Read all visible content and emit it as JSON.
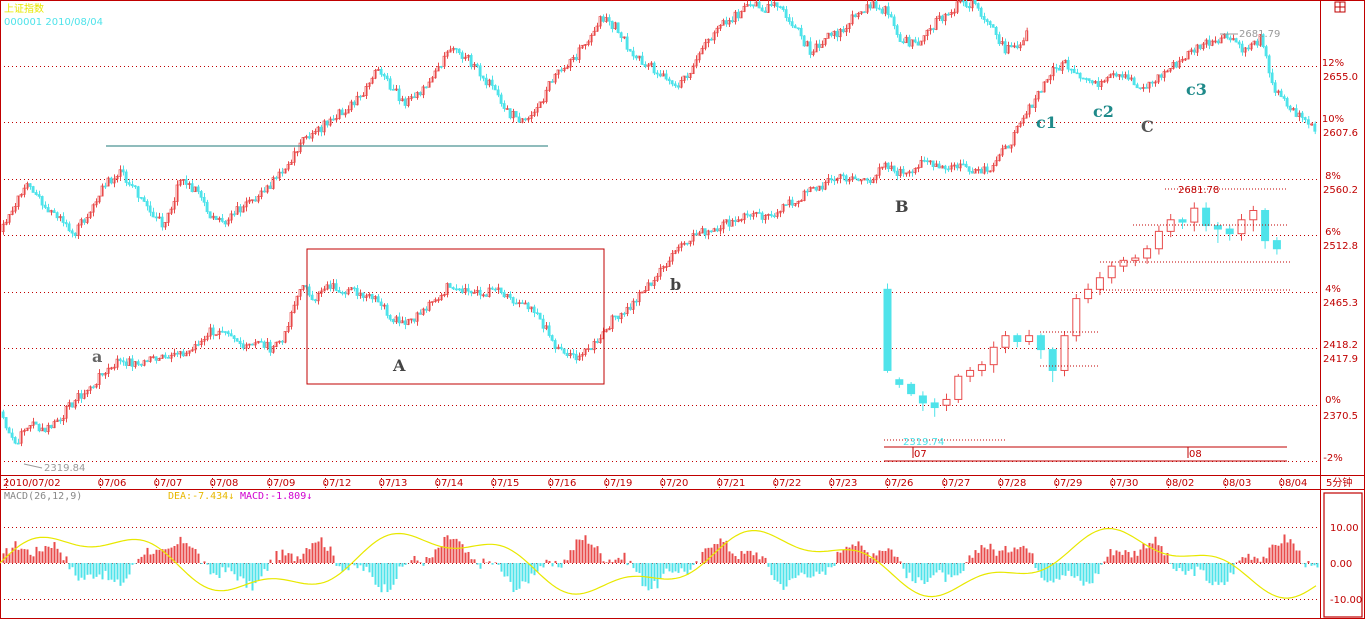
{
  "header": {
    "index_name": "上证指数",
    "code_date": "000001  2010/08/04",
    "toggle_icon": "window-toggle-icon"
  },
  "macd_header": {
    "params": "MACD(26,12,9)",
    "dea_text": "DEA:-7.434↓",
    "macd_text": "MACD:-1.809↓"
  },
  "timeframe_label": "5分钟",
  "colors": {
    "up": "#e84b4b",
    "down": "#4fe3ea",
    "frame": "#c00000",
    "dea": "#e8e800",
    "wave_label": "#1f8a8a"
  },
  "chart_data": [
    {
      "type": "candlestick",
      "panel": "main",
      "y_range": [
        2300,
        2700
      ],
      "y_tick_labels": [
        {
          "pct": "12%",
          "price": "2655.0"
        },
        {
          "pct": "10%",
          "price": "2607.6"
        },
        {
          "pct": "8%",
          "price": "2560.2"
        },
        {
          "pct": "6%",
          "price": "2512.8"
        },
        {
          "pct": "4%",
          "price": "2465.3"
        },
        {
          "pct": "",
          "price": "2418.2"
        },
        {
          "pct": "",
          "price": "2417.9"
        },
        {
          "pct": "0%",
          "price": "2370.5"
        },
        {
          "pct": "-2%",
          "price": ""
        }
      ],
      "x_tick_labels": [
        "2010/07/02",
        "07/06",
        "07/07",
        "07/08",
        "07/09",
        "07/12",
        "07/13",
        "07/14",
        "07/15",
        "07/16",
        "07/19",
        "07/20",
        "07/21",
        "07/22",
        "07/23",
        "07/26",
        "07/27",
        "07/28",
        "07/29",
        "07/30",
        "08/02",
        "08/03",
        "08/04"
      ],
      "annotations": {
        "low": "2319.84",
        "high": "2681.79",
        "waves": [
          "a",
          "A",
          "b",
          "B",
          "c1",
          "c2",
          "C",
          "c3"
        ]
      },
      "series_path": [
        [
          0,
          2350
        ],
        [
          15,
          2323
        ],
        [
          30,
          2340
        ],
        [
          45,
          2335
        ],
        [
          60,
          2345
        ],
        [
          75,
          2360
        ],
        [
          90,
          2370
        ],
        [
          105,
          2385
        ],
        [
          120,
          2395
        ],
        [
          135,
          2390
        ],
        [
          150,
          2395
        ],
        [
          165,
          2400
        ],
        [
          180,
          2398
        ],
        [
          195,
          2405
        ],
        [
          210,
          2420
        ],
        [
          225,
          2415
        ],
        [
          240,
          2408
        ],
        [
          255,
          2410
        ],
        [
          270,
          2405
        ],
        [
          285,
          2415
        ],
        [
          300,
          2458
        ],
        [
          315,
          2448
        ],
        [
          330,
          2458
        ],
        [
          345,
          2455
        ],
        [
          360,
          2452
        ],
        [
          375,
          2450
        ],
        [
          390,
          2432
        ],
        [
          405,
          2428
        ],
        [
          420,
          2434
        ],
        [
          435,
          2445
        ],
        [
          450,
          2460
        ],
        [
          465,
          2455
        ],
        [
          480,
          2450
        ],
        [
          495,
          2455
        ],
        [
          510,
          2445
        ],
        [
          525,
          2440
        ],
        [
          540,
          2430
        ],
        [
          555,
          2405
        ],
        [
          570,
          2397
        ],
        [
          585,
          2400
        ],
        [
          600,
          2415
        ],
        [
          615,
          2432
        ],
        [
          630,
          2440
        ],
        [
          645,
          2455
        ],
        [
          660,
          2470
        ],
        [
          675,
          2490
        ],
        [
          690,
          2500
        ],
        [
          705,
          2505
        ],
        [
          720,
          2510
        ],
        [
          735,
          2515
        ],
        [
          750,
          2520
        ],
        [
          765,
          2515
        ],
        [
          780,
          2525
        ],
        [
          795,
          2530
        ],
        [
          810,
          2540
        ],
        [
          825,
          2545
        ],
        [
          840,
          2553
        ],
        [
          855,
          2548
        ],
        [
          870,
          2550
        ],
        [
          885,
          2560
        ],
        [
          900,
          2555
        ],
        [
          915,
          2560
        ],
        [
          930,
          2565
        ],
        [
          945,
          2560
        ],
        [
          960,
          2562
        ],
        [
          975,
          2558
        ],
        [
          990,
          2560
        ],
        [
          1005,
          2575
        ],
        [
          1020,
          2595
        ],
        [
          1035,
          2620
        ],
        [
          1050,
          2640
        ],
        [
          1065,
          2650
        ],
        [
          1080,
          2640
        ],
        [
          1095,
          2630
        ],
        [
          1110,
          2642
        ],
        [
          1125,
          2640
        ],
        [
          1140,
          2625
        ],
        [
          1155,
          2635
        ],
        [
          1170,
          2645
        ],
        [
          1185,
          2655
        ],
        [
          1200,
          2665
        ],
        [
          1215,
          2670
        ],
        [
          1230,
          2673
        ],
        [
          1245,
          2660
        ],
        [
          1260,
          2670
        ],
        [
          1275,
          2625
        ],
        [
          1290,
          2610
        ],
        [
          1305,
          2600
        ],
        [
          1318,
          2592
        ]
      ],
      "upper_path": [
        [
          0,
          2505
        ],
        [
          15,
          2530
        ],
        [
          30,
          2545
        ],
        [
          45,
          2525
        ],
        [
          60,
          2515
        ],
        [
          75,
          2505
        ],
        [
          90,
          2520
        ],
        [
          105,
          2545
        ],
        [
          120,
          2555
        ],
        [
          135,
          2540
        ],
        [
          150,
          2520
        ],
        [
          165,
          2510
        ],
        [
          180,
          2550
        ],
        [
          195,
          2540
        ],
        [
          210,
          2520
        ],
        [
          225,
          2515
        ],
        [
          240,
          2525
        ],
        [
          255,
          2530
        ],
        [
          270,
          2545
        ],
        [
          285,
          2560
        ],
        [
          300,
          2580
        ],
        [
          315,
          2590
        ],
        [
          330,
          2600
        ],
        [
          345,
          2610
        ],
        [
          360,
          2620
        ],
        [
          375,
          2645
        ],
        [
          390,
          2630
        ],
        [
          405,
          2615
        ],
        [
          420,
          2625
        ],
        [
          435,
          2640
        ],
        [
          450,
          2660
        ],
        [
          465,
          2655
        ],
        [
          480,
          2640
        ],
        [
          495,
          2625
        ],
        [
          510,
          2605
        ],
        [
          525,
          2600
        ],
        [
          540,
          2615
        ],
        [
          555,
          2640
        ],
        [
          570,
          2650
        ],
        [
          585,
          2665
        ],
        [
          600,
          2690
        ],
        [
          615,
          2680
        ],
        [
          630,
          2660
        ],
        [
          645,
          2650
        ],
        [
          660,
          2640
        ],
        [
          675,
          2630
        ],
        [
          690,
          2640
        ],
        [
          705,
          2665
        ],
        [
          720,
          2680
        ],
        [
          735,
          2690
        ],
        [
          750,
          2700
        ],
        [
          765,
          2695
        ],
        [
          780,
          2700
        ],
        [
          795,
          2680
        ],
        [
          810,
          2660
        ],
        [
          825,
          2670
        ],
        [
          840,
          2675
        ],
        [
          855,
          2690
        ],
        [
          870,
          2700
        ],
        [
          885,
          2695
        ],
        [
          900,
          2670
        ],
        [
          915,
          2665
        ],
        [
          930,
          2680
        ],
        [
          945,
          2690
        ],
        [
          960,
          2700
        ],
        [
          975,
          2700
        ],
        [
          990,
          2680
        ],
        [
          1005,
          2660
        ],
        [
          1020,
          2665
        ],
        [
          1030,
          2680
        ]
      ]
    },
    {
      "type": "candlestick",
      "panel": "inset",
      "annotations": {
        "high": "2681.78",
        "low": "2319.74",
        "dates": [
          "07",
          "08"
        ]
      },
      "candles": [
        [
          2470,
          2400,
          2475,
          2398
        ],
        [
          2392,
          2388,
          2394,
          2385
        ],
        [
          2388,
          2380,
          2390,
          2378
        ],
        [
          2378,
          2372,
          2382,
          2365
        ],
        [
          2372,
          2368,
          2376,
          2360
        ],
        [
          2370,
          2375,
          2380,
          2365
        ],
        [
          2375,
          2395,
          2397,
          2372
        ],
        [
          2395,
          2400,
          2403,
          2390
        ],
        [
          2400,
          2405,
          2408,
          2395
        ],
        [
          2405,
          2420,
          2425,
          2398
        ],
        [
          2420,
          2430,
          2434,
          2415
        ],
        [
          2430,
          2425,
          2432,
          2420
        ],
        [
          2425,
          2430,
          2435,
          2422
        ],
        [
          2430,
          2418,
          2432,
          2410
        ],
        [
          2418,
          2400,
          2420,
          2390
        ],
        [
          2400,
          2430,
          2434,
          2395
        ],
        [
          2430,
          2462,
          2466,
          2425
        ],
        [
          2462,
          2470,
          2475,
          2458
        ],
        [
          2470,
          2480,
          2485,
          2465
        ],
        [
          2480,
          2490,
          2494,
          2475
        ],
        [
          2490,
          2495,
          2498,
          2485
        ],
        [
          2495,
          2497,
          2500,
          2490
        ],
        [
          2497,
          2505,
          2508,
          2492
        ],
        [
          2505,
          2520,
          2525,
          2500
        ],
        [
          2520,
          2530,
          2535,
          2515
        ],
        [
          2530,
          2528,
          2532,
          2522
        ],
        [
          2528,
          2540,
          2545,
          2520
        ],
        [
          2540,
          2525,
          2545,
          2520
        ],
        [
          2525,
          2522,
          2528,
          2510
        ],
        [
          2522,
          2518,
          2525,
          2512
        ],
        [
          2518,
          2530,
          2535,
          2512
        ],
        [
          2530,
          2538,
          2542,
          2520
        ],
        [
          2538,
          2512,
          2540,
          2505
        ],
        [
          2512,
          2505,
          2515,
          2500
        ]
      ]
    },
    {
      "type": "bar",
      "panel": "macd",
      "y_tick_labels": [
        "10.00",
        "0.00",
        "-10.00"
      ],
      "ylim": [
        -12,
        14
      ]
    }
  ]
}
